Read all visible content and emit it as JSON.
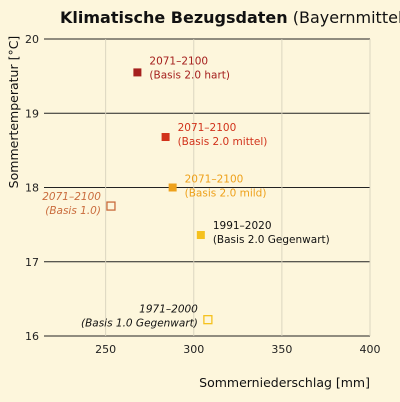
{
  "chart_data": {
    "type": "scatter",
    "title": "Klimatische Bezugsdaten",
    "subtitle": "(Bayernmittel)",
    "xlabel": "Sommerniederschlag [mm]",
    "ylabel": "Sommertemperatur [°C]",
    "xlim": [
      215,
      400
    ],
    "ylim": [
      16,
      20
    ],
    "x_ticks": [
      250,
      300,
      350,
      400
    ],
    "y_ticks": [
      16,
      17,
      18,
      19,
      20
    ],
    "grid": "both",
    "points": [
      {
        "x": 268,
        "y": 19.55,
        "label1": "2071–2100",
        "label2": "(Basis 2.0 hart)",
        "color": "#a5201e",
        "filled": true,
        "italic": false
      },
      {
        "x": 284,
        "y": 18.68,
        "label1": "2071–2100",
        "label2": "(Basis 2.0 mittel)",
        "color": "#d1321b",
        "filled": true,
        "italic": false
      },
      {
        "x": 288,
        "y": 18.0,
        "label1": "2071–2100",
        "label2": "(Basis 2.0 mild)",
        "color": "#eea11b",
        "filled": true,
        "italic": false
      },
      {
        "x": 253,
        "y": 17.75,
        "label1": "2071–2100",
        "label2": "(Basis 1.0)",
        "color": "#c96b3c",
        "filled": false,
        "italic": true
      },
      {
        "x": 304,
        "y": 17.36,
        "label1": "1991–2020",
        "label2": "(Basis 2.0 Gegenwart)",
        "color": "#f5c11e",
        "filled": true,
        "italic": false
      },
      {
        "x": 308,
        "y": 16.22,
        "label1": "1971–2000",
        "label2": "(Basis 1.0 Gegenwart)",
        "color": "#f5c11e",
        "filled": false,
        "italic": true
      }
    ]
  }
}
